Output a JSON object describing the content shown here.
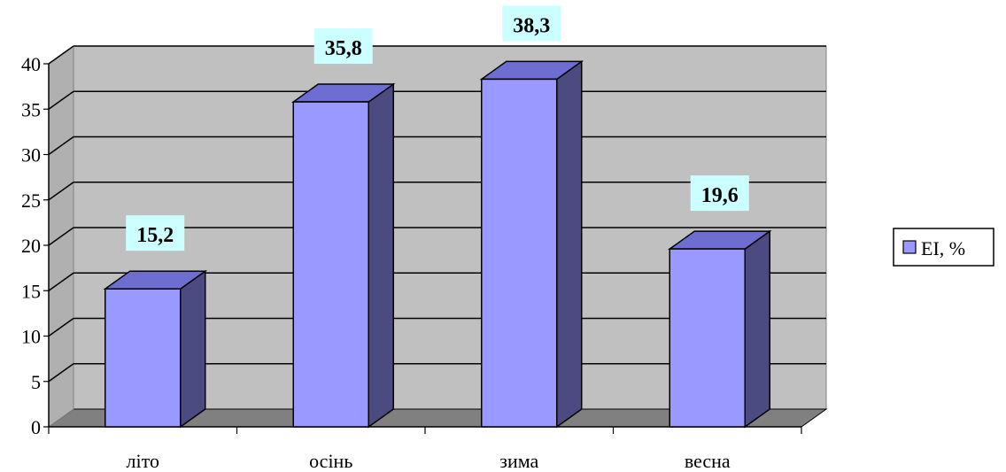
{
  "chart_data": {
    "type": "bar",
    "style": "3d-clustered-column",
    "categories": [
      "літо",
      "осінь",
      "зима",
      "весна"
    ],
    "series": [
      {
        "name": "EI, %",
        "values": [
          15.2,
          35.8,
          38.3,
          19.6
        ]
      }
    ],
    "data_labels": [
      "15,2",
      "35,8",
      "38,3",
      "19,6"
    ],
    "y_ticks": [
      "0",
      "5",
      "10",
      "15",
      "20",
      "25",
      "30",
      "35",
      "40"
    ],
    "ylim": [
      0,
      40
    ],
    "title": "",
    "xlabel": "",
    "ylabel": "",
    "grid": true,
    "legend_position": "right",
    "colors": {
      "bar_front": "#9999ff",
      "bar_top": "#6e6ed2",
      "bar_side": "#4b4b82",
      "wall": "#c0c0c0",
      "floor": "#808080",
      "data_label_bg": "#ccffff"
    }
  }
}
